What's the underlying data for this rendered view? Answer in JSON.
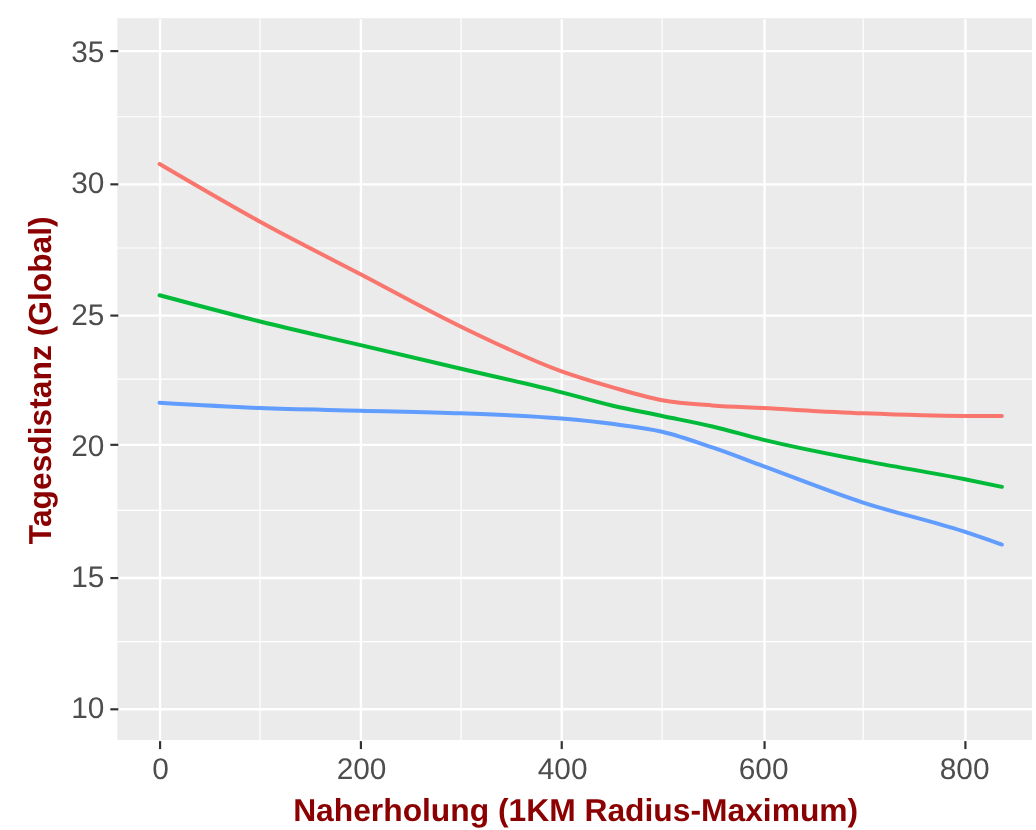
{
  "chart_data": {
    "type": "line",
    "xlabel": "Naherholung (1KM Radius-Maximum)",
    "ylabel": "Tagesdistanz (Global)",
    "x": [
      0,
      100,
      200,
      300,
      400,
      450,
      500,
      550,
      600,
      700,
      800,
      838
    ],
    "series": [
      {
        "color": "#F8766D",
        "values": [
          30.7,
          28.5,
          26.5,
          24.5,
          22.8,
          22.2,
          21.7,
          21.5,
          21.4,
          21.2,
          21.1,
          21.1
        ]
      },
      {
        "color": "#00BA38",
        "values": [
          25.7,
          24.7,
          23.8,
          22.9,
          22.0,
          21.5,
          21.1,
          20.7,
          20.2,
          19.4,
          18.7,
          18.4
        ]
      },
      {
        "color": "#619CFF",
        "values": [
          21.6,
          21.4,
          21.3,
          21.2,
          21.0,
          20.8,
          20.5,
          19.9,
          19.2,
          17.8,
          16.7,
          16.2
        ]
      }
    ],
    "xlim": [
      -42,
      868
    ],
    "ylim": [
      8.75,
      36.25
    ],
    "xticks": [
      0,
      200,
      400,
      600,
      800
    ],
    "yticks": [
      10,
      15,
      20,
      25,
      30,
      35
    ],
    "grid": true,
    "marker": "none",
    "line_style": "solid"
  }
}
